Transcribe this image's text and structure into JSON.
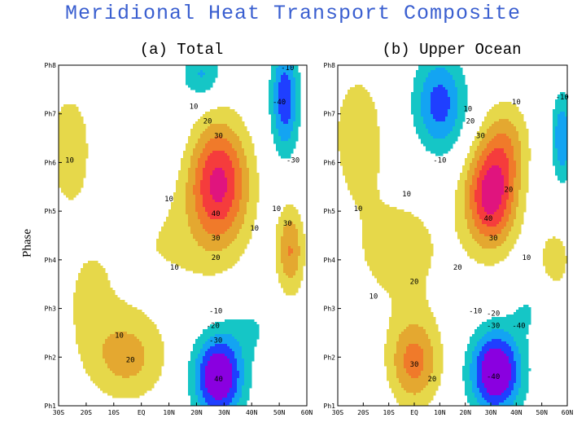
{
  "title": "Meridional Heat Transport Composite",
  "ylabel": "Phase",
  "colors": {
    "cool_strong": "#8a00e0",
    "cool_mid": "#1f3fff",
    "cool_light": "#13a4f2",
    "cool_weak": "#15c6c6",
    "neutral": "#ffffff",
    "warm_weak": "#e6d84a",
    "warm_mid": "#e4a830",
    "warm_high": "#f07a2a",
    "warm_strong": "#f53c3c",
    "warm_max": "#e0147e",
    "title": "#3a5fd0"
  },
  "chart_data": [
    {
      "type": "heatmap",
      "subtype": "filled-contour",
      "title": "(a) Total",
      "xlabel": "",
      "ylabel": "Phase",
      "x_ticks": [
        "30S",
        "20S",
        "10S",
        "EQ",
        "10N",
        "20N",
        "30N",
        "40N",
        "50N",
        "60N"
      ],
      "y_ticks": [
        "Ph1",
        "Ph2",
        "Ph3",
        "Ph4",
        "Ph5",
        "Ph6",
        "Ph7",
        "Ph8"
      ],
      "xlim": [
        "30S",
        "60N"
      ],
      "ylim": [
        "Ph1",
        "Ph8"
      ],
      "contour_levels": [
        -40,
        -30,
        -20,
        -10,
        10,
        20,
        30,
        40
      ],
      "contour_labels": [
        {
          "text": "-10",
          "lon": 53,
          "phase": 7.9
        },
        {
          "text": "10",
          "lon": 19,
          "phase": 7.1
        },
        {
          "text": "20",
          "lon": 24,
          "phase": 6.8
        },
        {
          "text": "30",
          "lon": 28,
          "phase": 6.5
        },
        {
          "text": "10",
          "lon": -26,
          "phase": 6.0
        },
        {
          "text": "-30",
          "lon": 55,
          "phase": 6.0
        },
        {
          "text": "10",
          "lon": 10,
          "phase": 5.2
        },
        {
          "text": "-40",
          "lon": 50,
          "phase": 7.2
        },
        {
          "text": "40",
          "lon": 27,
          "phase": 4.9
        },
        {
          "text": "10",
          "lon": 49,
          "phase": 5.0
        },
        {
          "text": "30",
          "lon": 53,
          "phase": 4.7
        },
        {
          "text": "10",
          "lon": 41,
          "phase": 4.6
        },
        {
          "text": "30",
          "lon": 27,
          "phase": 4.4
        },
        {
          "text": "20",
          "lon": 27,
          "phase": 4.0
        },
        {
          "text": "10",
          "lon": 12,
          "phase": 3.8
        },
        {
          "text": "-10",
          "lon": 27,
          "phase": 2.9
        },
        {
          "text": "-20",
          "lon": 26,
          "phase": 2.6
        },
        {
          "text": "10",
          "lon": -8,
          "phase": 2.4
        },
        {
          "text": "-30",
          "lon": 27,
          "phase": 2.3
        },
        {
          "text": "20",
          "lon": -4,
          "phase": 1.9
        },
        {
          "text": "40",
          "lon": 28,
          "phase": 1.5
        }
      ]
    },
    {
      "type": "heatmap",
      "subtype": "filled-contour",
      "title": "(b) Upper Ocean",
      "xlabel": "",
      "ylabel": "",
      "x_ticks": [
        "30S",
        "20S",
        "10S",
        "EQ",
        "10N",
        "20N",
        "30N",
        "40N",
        "50N",
        "60N"
      ],
      "y_ticks": [
        "Ph1",
        "Ph2",
        "Ph3",
        "Ph4",
        "Ph5",
        "Ph6",
        "Ph7",
        "Ph8"
      ],
      "xlim": [
        "30S",
        "60N"
      ],
      "ylim": [
        "Ph1",
        "Ph8"
      ],
      "contour_levels": [
        -40,
        -30,
        -20,
        -10,
        10,
        20,
        30,
        40
      ],
      "contour_labels": [
        {
          "text": "-10",
          "lon": 58,
          "phase": 7.3
        },
        {
          "text": "10",
          "lon": 40,
          "phase": 7.2
        },
        {
          "text": "10",
          "lon": 21,
          "phase": 7.05
        },
        {
          "text": "20",
          "lon": 22,
          "phase": 6.8
        },
        {
          "text": "30",
          "lon": 26,
          "phase": 6.5
        },
        {
          "text": "-10",
          "lon": 10,
          "phase": 6.0
        },
        {
          "text": "10",
          "lon": -3,
          "phase": 5.3
        },
        {
          "text": "20",
          "lon": 37,
          "phase": 5.4
        },
        {
          "text": "10",
          "lon": -22,
          "phase": 5.0
        },
        {
          "text": "40",
          "lon": 29,
          "phase": 4.8
        },
        {
          "text": "30",
          "lon": 31,
          "phase": 4.4
        },
        {
          "text": "10",
          "lon": 44,
          "phase": 4.0
        },
        {
          "text": "20",
          "lon": 17,
          "phase": 3.8
        },
        {
          "text": "20",
          "lon": 0,
          "phase": 3.5
        },
        {
          "text": "10",
          "lon": -16,
          "phase": 3.2
        },
        {
          "text": "-10",
          "lon": 24,
          "phase": 2.9
        },
        {
          "text": "-20",
          "lon": 31,
          "phase": 2.85
        },
        {
          "text": "-30",
          "lon": 31,
          "phase": 2.6
        },
        {
          "text": "-40",
          "lon": 41,
          "phase": 2.6
        },
        {
          "text": "30",
          "lon": 0,
          "phase": 1.8
        },
        {
          "text": "-40",
          "lon": 31,
          "phase": 1.55
        },
        {
          "text": "20",
          "lon": 7,
          "phase": 1.5
        }
      ]
    }
  ]
}
